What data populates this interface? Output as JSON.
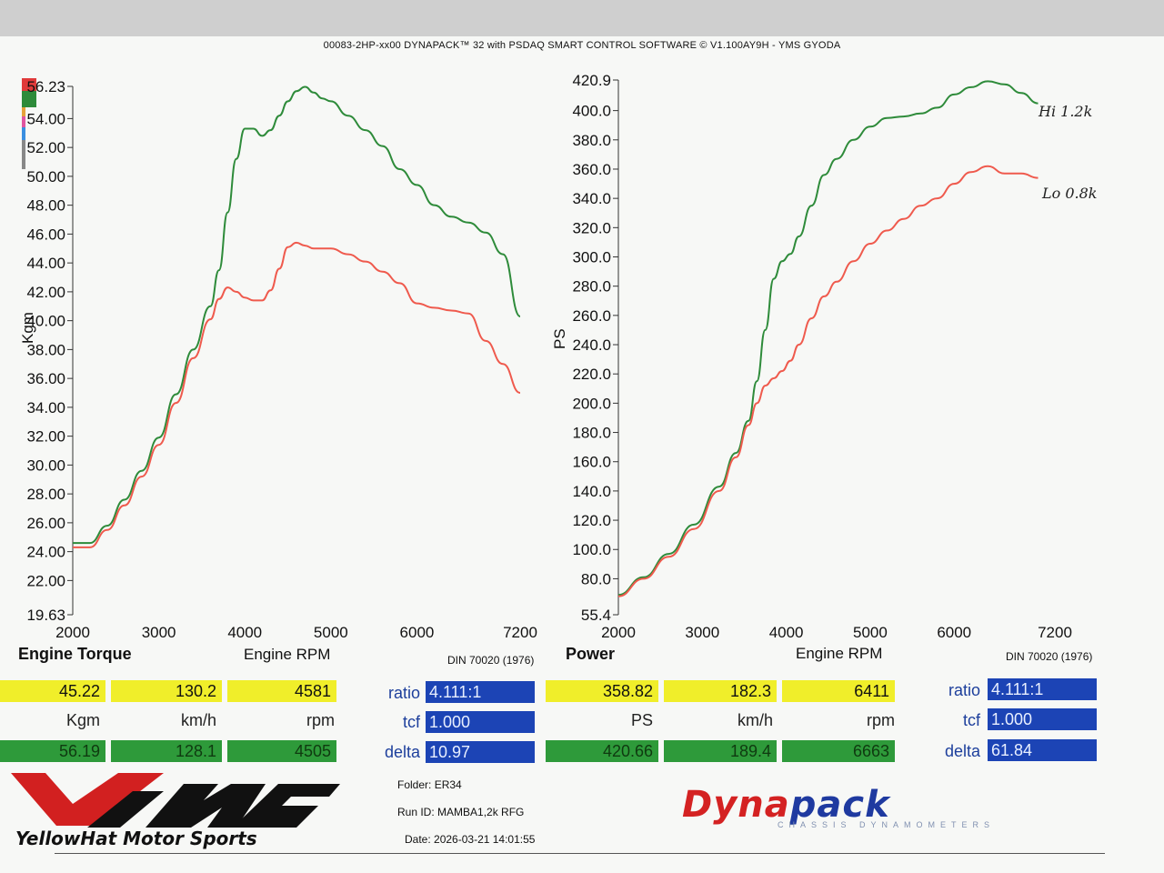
{
  "header": "00083-2HP-xx00 DYNAPACK™ 32 with PSDAQ SMART CONTROL SOFTWARE © V1.100AY9H - YMS GYODA",
  "colors": {
    "green_run": "#2e8b3a",
    "red_run": "#ef5a4d",
    "key": [
      "#e03a3a",
      "#2e8b3a",
      "#e6a23a",
      "#e055a0",
      "#3a8fe0",
      "#888888"
    ]
  },
  "annotations": {
    "hi": "Hi 1.2k",
    "lo": "Lo 0.8k"
  },
  "chart_data": [
    {
      "type": "line",
      "title": "Engine Torque",
      "xlabel": "Engine RPM",
      "ylabel": "Kgm",
      "standard": "DIN 70020 (1976)",
      "xlim": [
        2000,
        7200
      ],
      "ylim": [
        19.63,
        56.23
      ],
      "x_ticks": [
        "2000",
        "3000",
        "4000",
        "5000",
        "6000",
        "7200"
      ],
      "y_ticks": [
        "56.23",
        "54.00",
        "52.00",
        "50.00",
        "48.00",
        "46.00",
        "44.00",
        "42.00",
        "40.00",
        "38.00",
        "36.00",
        "34.00",
        "32.00",
        "30.00",
        "28.00",
        "26.00",
        "24.00",
        "22.00",
        "19.63"
      ],
      "series": [
        {
          "color": "#2e8b3a",
          "points": [
            [
              2000,
              24.6
            ],
            [
              2200,
              24.6
            ],
            [
              2400,
              25.8
            ],
            [
              2600,
              27.6
            ],
            [
              2800,
              29.6
            ],
            [
              3000,
              31.9
            ],
            [
              3200,
              34.9
            ],
            [
              3400,
              38.0
            ],
            [
              3600,
              41.0
            ],
            [
              3700,
              43.5
            ],
            [
              3800,
              47.5
            ],
            [
              3900,
              51.2
            ],
            [
              4000,
              53.3
            ],
            [
              4100,
              53.3
            ],
            [
              4200,
              52.8
            ],
            [
              4300,
              53.2
            ],
            [
              4400,
              54.2
            ],
            [
              4500,
              55.2
            ],
            [
              4600,
              55.9
            ],
            [
              4700,
              56.2
            ],
            [
              4800,
              55.8
            ],
            [
              4900,
              55.4
            ],
            [
              5000,
              55.2
            ],
            [
              5200,
              54.2
            ],
            [
              5400,
              53.2
            ],
            [
              5600,
              52.1
            ],
            [
              5800,
              50.5
            ],
            [
              6000,
              49.4
            ],
            [
              6200,
              48.0
            ],
            [
              6400,
              47.2
            ],
            [
              6600,
              46.8
            ],
            [
              6800,
              46.1
            ],
            [
              7000,
              44.6
            ],
            [
              7200,
              40.3
            ]
          ]
        },
        {
          "color": "#ef5a4d",
          "points": [
            [
              2000,
              24.3
            ],
            [
              2200,
              24.3
            ],
            [
              2400,
              25.5
            ],
            [
              2600,
              27.2
            ],
            [
              2800,
              29.2
            ],
            [
              3000,
              31.4
            ],
            [
              3200,
              34.3
            ],
            [
              3400,
              37.4
            ],
            [
              3600,
              40.1
            ],
            [
              3700,
              41.5
            ],
            [
              3800,
              42.3
            ],
            [
              3900,
              42.0
            ],
            [
              4000,
              41.6
            ],
            [
              4100,
              41.4
            ],
            [
              4200,
              41.4
            ],
            [
              4300,
              42.1
            ],
            [
              4400,
              43.6
            ],
            [
              4500,
              45.1
            ],
            [
              4600,
              45.4
            ],
            [
              4700,
              45.2
            ],
            [
              4800,
              45.0
            ],
            [
              5000,
              45.0
            ],
            [
              5200,
              44.6
            ],
            [
              5400,
              44.1
            ],
            [
              5600,
              43.4
            ],
            [
              5800,
              42.6
            ],
            [
              6000,
              41.2
            ],
            [
              6200,
              40.9
            ],
            [
              6400,
              40.7
            ],
            [
              6600,
              40.5
            ],
            [
              6800,
              38.6
            ],
            [
              7000,
              37.0
            ],
            [
              7200,
              35.0
            ]
          ]
        }
      ]
    },
    {
      "type": "line",
      "title": "Power",
      "xlabel": "Engine RPM",
      "ylabel": "PS",
      "standard": "DIN 70020 (1976)",
      "xlim": [
        2000,
        7200
      ],
      "ylim": [
        55.4,
        420.9
      ],
      "x_ticks": [
        "2000",
        "3000",
        "4000",
        "5000",
        "6000",
        "7200"
      ],
      "y_ticks": [
        "420.9",
        "400.0",
        "380.0",
        "360.0",
        "340.0",
        "320.0",
        "300.0",
        "280.0",
        "260.0",
        "240.0",
        "220.0",
        "200.0",
        "180.0",
        "160.0",
        "140.0",
        "120.0",
        "100.0",
        "80.0",
        "55.4"
      ],
      "series": [
        {
          "color": "#2e8b3a",
          "points": [
            [
              2000,
              69
            ],
            [
              2300,
              81
            ],
            [
              2600,
              97
            ],
            [
              2900,
              117
            ],
            [
              3200,
              143
            ],
            [
              3400,
              166
            ],
            [
              3550,
              188
            ],
            [
              3650,
              215
            ],
            [
              3750,
              250
            ],
            [
              3850,
              285
            ],
            [
              3950,
              297
            ],
            [
              4050,
              302
            ],
            [
              4150,
              314
            ],
            [
              4300,
              335
            ],
            [
              4450,
              356
            ],
            [
              4600,
              367
            ],
            [
              4800,
              380
            ],
            [
              5000,
              389
            ],
            [
              5200,
              395
            ],
            [
              5400,
              396
            ],
            [
              5600,
              398
            ],
            [
              5800,
              402
            ],
            [
              6000,
              411
            ],
            [
              6200,
              416
            ],
            [
              6400,
              420
            ],
            [
              6600,
              418
            ],
            [
              6800,
              412
            ],
            [
              7000,
              405
            ]
          ]
        },
        {
          "color": "#ef5a4d",
          "points": [
            [
              2000,
              68
            ],
            [
              2300,
              80
            ],
            [
              2600,
              95
            ],
            [
              2900,
              114
            ],
            [
              3200,
              140
            ],
            [
              3400,
              163
            ],
            [
              3550,
              185
            ],
            [
              3650,
              200
            ],
            [
              3750,
              212
            ],
            [
              3850,
              217
            ],
            [
              3950,
              222
            ],
            [
              4050,
              229
            ],
            [
              4150,
              240
            ],
            [
              4300,
              258
            ],
            [
              4450,
              273
            ],
            [
              4600,
              283
            ],
            [
              4800,
              297
            ],
            [
              5000,
              309
            ],
            [
              5200,
              318
            ],
            [
              5400,
              326
            ],
            [
              5600,
              335
            ],
            [
              5800,
              340
            ],
            [
              6000,
              350
            ],
            [
              6200,
              358
            ],
            [
              6400,
              362
            ],
            [
              6600,
              357
            ],
            [
              6800,
              357
            ],
            [
              7000,
              354
            ]
          ]
        }
      ]
    }
  ],
  "readouts": {
    "torque": {
      "current": [
        "45.22",
        "130.2",
        "4581"
      ],
      "units": [
        "Kgm",
        "km/h",
        "rpm"
      ],
      "peak": [
        "56.19",
        "128.1",
        "4505"
      ],
      "labels": [
        "ratio",
        "tcf",
        "delta"
      ],
      "params": [
        "4.111:1",
        "1.000",
        "10.97"
      ]
    },
    "power": {
      "current": [
        "358.82",
        "182.3",
        "6411"
      ],
      "units": [
        "PS",
        "km/h",
        "rpm"
      ],
      "peak": [
        "420.66",
        "189.4",
        "6663"
      ],
      "labels": [
        "ratio",
        "tcf",
        "delta"
      ],
      "params": [
        "4.111:1",
        "1.000",
        "61.84"
      ]
    }
  },
  "footer": {
    "folder_label": "Folder:",
    "folder": "ER34",
    "run_label": "Run ID:",
    "run_id": "MAMBA1,2k RFG",
    "date_label": "Date:",
    "date": "2026-03-21 14:01:55"
  },
  "logos": {
    "yms": "YellowHat Motor Sports",
    "dyna_a": "Dyna",
    "dyna_b": "pack",
    "dyna_sub": "CHASSIS DYNAMOMETERS"
  }
}
